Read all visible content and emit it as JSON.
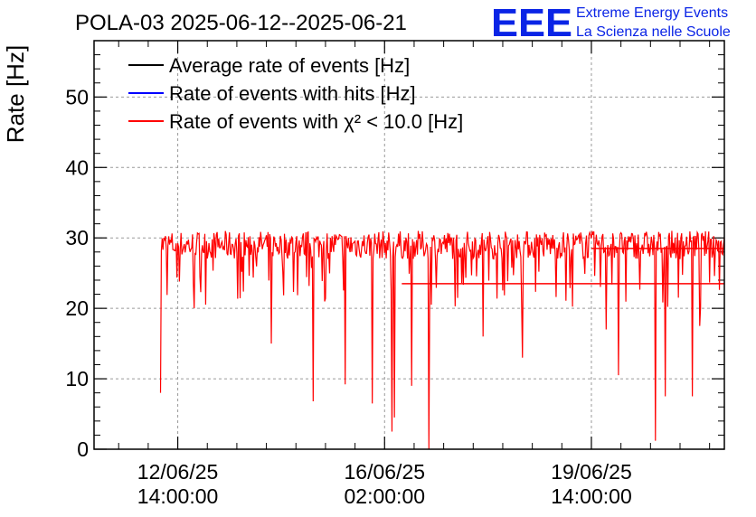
{
  "header": {
    "title": "POLA-03 2025-06-12--2025-06-21",
    "logo_text": "EEE",
    "tagline_1": "Extreme Energy Events",
    "tagline_2": "La Scienza nelle Scuole"
  },
  "colors": {
    "average": "#000000",
    "hits": "#0000ff",
    "chi2": "#ff0000",
    "logo": "#0a24e6",
    "grid": "#9a9a9a"
  },
  "chart_data": {
    "type": "line",
    "title": "POLA-03 2025-06-12--2025-06-21",
    "xlabel": "",
    "ylabel": "Rate [Hz]",
    "xlim": [
      "2025-06-11T04:00:00",
      "2025-06-21T20:00:00"
    ],
    "ylim": [
      0,
      58
    ],
    "grid": true,
    "legend_position": "top-left",
    "y_ticks": [
      0,
      10,
      20,
      30,
      40,
      50
    ],
    "x_ticks": [
      {
        "t": "2025-06-12T14:00:00",
        "line1": "12/06/25",
        "line2": "14:00:00"
      },
      {
        "t": "2025-06-16T02:00:00",
        "line1": "16/06/25",
        "line2": "02:00:00"
      },
      {
        "t": "2025-06-19T14:00:00",
        "line1": "19/06/25",
        "line2": "14:00:00"
      }
    ],
    "series": [
      {
        "name": "Average rate of events [Hz]",
        "color": "#000000",
        "hidden_behind": "Rate of events with χ² < 10.0 [Hz]"
      },
      {
        "name": "Rate of events with hits [Hz]",
        "color": "#0000ff",
        "hidden_behind": "Rate of events with χ² < 10.0 [Hz]"
      },
      {
        "name": "Rate of events with χ² < 10.0 [Hz]",
        "color": "#ff0000",
        "start": "2025-06-12T07:00:00",
        "end": "2025-06-21T20:00:00",
        "baseline": 29,
        "band": [
          27,
          31
        ],
        "dips": [
          {
            "t": "2025-06-12T07:00:00",
            "y": 8
          },
          {
            "t": "2025-06-14T04:00:00",
            "y": 15
          },
          {
            "t": "2025-06-14T21:00:00",
            "y": 6.8
          },
          {
            "t": "2025-06-15T10:00:00",
            "y": 9.2
          },
          {
            "t": "2025-06-15T21:00:00",
            "y": 6.5
          },
          {
            "t": "2025-06-16T05:00:00",
            "y": 2.5
          },
          {
            "t": "2025-06-16T06:00:00",
            "y": 4.5
          },
          {
            "t": "2025-06-16T13:00:00",
            "y": 9
          },
          {
            "t": "2025-06-16T20:00:00",
            "y": 0
          },
          {
            "t": "2025-06-17T18:00:00",
            "y": 16
          },
          {
            "t": "2025-06-18T10:00:00",
            "y": 13
          },
          {
            "t": "2025-06-19T20:00:00",
            "y": 17
          },
          {
            "t": "2025-06-20T01:00:00",
            "y": 10.5
          },
          {
            "t": "2025-06-20T16:00:00",
            "y": 1.2
          },
          {
            "t": "2025-06-20T20:00:00",
            "y": 7.5
          },
          {
            "t": "2025-06-21T07:00:00",
            "y": 7.5
          },
          {
            "t": "2025-06-21T10:00:00",
            "y": 17.5
          }
        ],
        "steps": [
          {
            "from": "2025-06-16T09:00:00",
            "to": "2025-06-21T20:00:00",
            "y": 23.5
          },
          {
            "from": "2025-06-19T14:00:00",
            "to": "2025-06-21T20:00:00",
            "y": 28.5
          }
        ]
      }
    ]
  }
}
